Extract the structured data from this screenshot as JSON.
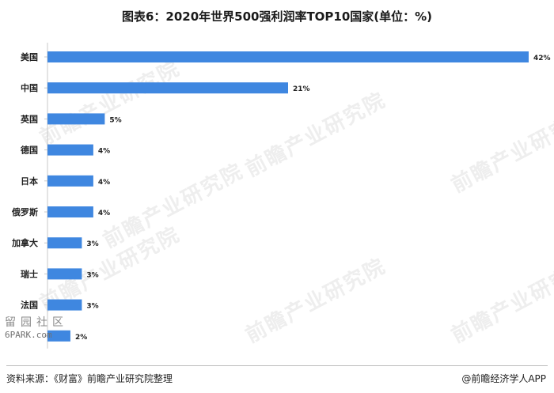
{
  "title": "图表6：2020年世界500强利润率TOP10国家(单位：%)",
  "source": "资料来源：《财富》前瞻产业研究院整理",
  "brand": "@前瞻经济学人APP",
  "watermark_text": "前瞻产业研究院",
  "community_mark": {
    "line1": "留园社区",
    "line2": "6PARK.com"
  },
  "colors": {
    "bar": "#3f87e0",
    "axis": "#c8c8c8",
    "label": "#222222"
  },
  "chart_data": {
    "type": "bar",
    "orientation": "horizontal",
    "title": "图表6：2020年世界500强利润率TOP10国家(单位：%)",
    "xlabel": "",
    "ylabel": "",
    "unit": "%",
    "categories": [
      "美国",
      "中国",
      "英国",
      "德国",
      "日本",
      "俄罗斯",
      "加拿大",
      "瑞士",
      "法国",
      ""
    ],
    "values": [
      42,
      21,
      5,
      4,
      4,
      4,
      3,
      3,
      3,
      2
    ],
    "value_labels": [
      "42%",
      "21%",
      "5%",
      "4%",
      "4%",
      "4%",
      "3%",
      "3%",
      "3%",
      "2%"
    ],
    "xlim": [
      0,
      42
    ],
    "grid": false,
    "legend": "none"
  }
}
